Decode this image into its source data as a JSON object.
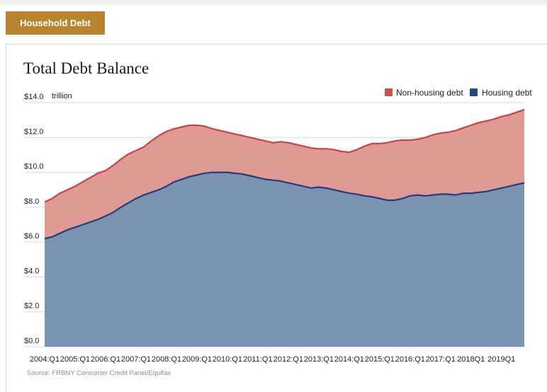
{
  "header": {
    "tab_label": "Household Debt"
  },
  "colors": {
    "tab": "#b8842f",
    "housing_fill": "#7b93b0",
    "housing_line": "#203f78",
    "nonhousing_fill": "#df9a96",
    "nonhousing_line": "#c74443",
    "nonhousing_legend": "#cf4f4f",
    "housing_legend": "#1f4b8a",
    "grid": "#d9d9d9"
  },
  "source": "Source: FRBNY Consumer Credit Panel/Equifax",
  "chart_data": {
    "type": "area",
    "title": "Total Debt Balance",
    "unit": "trillion",
    "stacked": true,
    "x_start": "2004:Q1",
    "x_end": "2019:Q4",
    "n_points": 64,
    "ylim": [
      0,
      14
    ],
    "y_ticks": [
      {
        "value": 0,
        "label": "$0.0"
      },
      {
        "value": 2,
        "label": "$2.0"
      },
      {
        "value": 4,
        "label": "$4.0"
      },
      {
        "value": 6,
        "label": "$6.0"
      },
      {
        "value": 8,
        "label": "$8.0"
      },
      {
        "value": 10,
        "label": "$10.0"
      },
      {
        "value": 12,
        "label": "$12.0"
      },
      {
        "value": 14,
        "label": "$14.0"
      }
    ],
    "x_tick_labels": [
      "2004:Q1",
      "2005:Q1",
      "2006:Q1",
      "2007:Q1",
      "2008:Q1",
      "2009:Q1",
      "2010:Q1",
      "2011:Q1",
      "2012:Q1",
      "2013:Q1",
      "2014:Q1",
      "2015:Q1",
      "2016:Q1",
      "2017:Q1",
      "2018Q1",
      "2019Q1"
    ],
    "legend": [
      {
        "name": "Non-housing debt",
        "color_key": "nonhousing_legend"
      },
      {
        "name": "Housing debt",
        "color_key": "housing_legend"
      }
    ],
    "legend_position": "top-right",
    "housing_debt": [
      6.2,
      6.3,
      6.5,
      6.7,
      6.85,
      7.0,
      7.15,
      7.3,
      7.5,
      7.7,
      8.0,
      8.25,
      8.5,
      8.7,
      8.85,
      9.0,
      9.2,
      9.45,
      9.6,
      9.75,
      9.85,
      9.95,
      10.0,
      10.0,
      10.0,
      9.95,
      9.9,
      9.8,
      9.7,
      9.6,
      9.55,
      9.5,
      9.4,
      9.3,
      9.2,
      9.1,
      9.15,
      9.1,
      9.0,
      8.9,
      8.8,
      8.75,
      8.65,
      8.6,
      8.5,
      8.4,
      8.4,
      8.5,
      8.65,
      8.7,
      8.65,
      8.7,
      8.75,
      8.75,
      8.7,
      8.8,
      8.8,
      8.85,
      8.9,
      9.0,
      9.1,
      9.2,
      9.3,
      9.4
    ],
    "total_debt": [
      8.3,
      8.5,
      8.8,
      9.0,
      9.2,
      9.45,
      9.7,
      9.95,
      10.1,
      10.4,
      10.75,
      11.05,
      11.25,
      11.45,
      11.8,
      12.1,
      12.35,
      12.5,
      12.6,
      12.7,
      12.7,
      12.65,
      12.5,
      12.4,
      12.3,
      12.2,
      12.1,
      12.0,
      11.9,
      11.8,
      11.7,
      11.75,
      11.7,
      11.6,
      11.5,
      11.4,
      11.35,
      11.35,
      11.3,
      11.2,
      11.15,
      11.3,
      11.5,
      11.65,
      11.65,
      11.7,
      11.8,
      11.85,
      11.85,
      11.9,
      12.0,
      12.15,
      12.25,
      12.3,
      12.4,
      12.55,
      12.7,
      12.85,
      12.95,
      13.05,
      13.2,
      13.3,
      13.45,
      13.6
    ]
  }
}
